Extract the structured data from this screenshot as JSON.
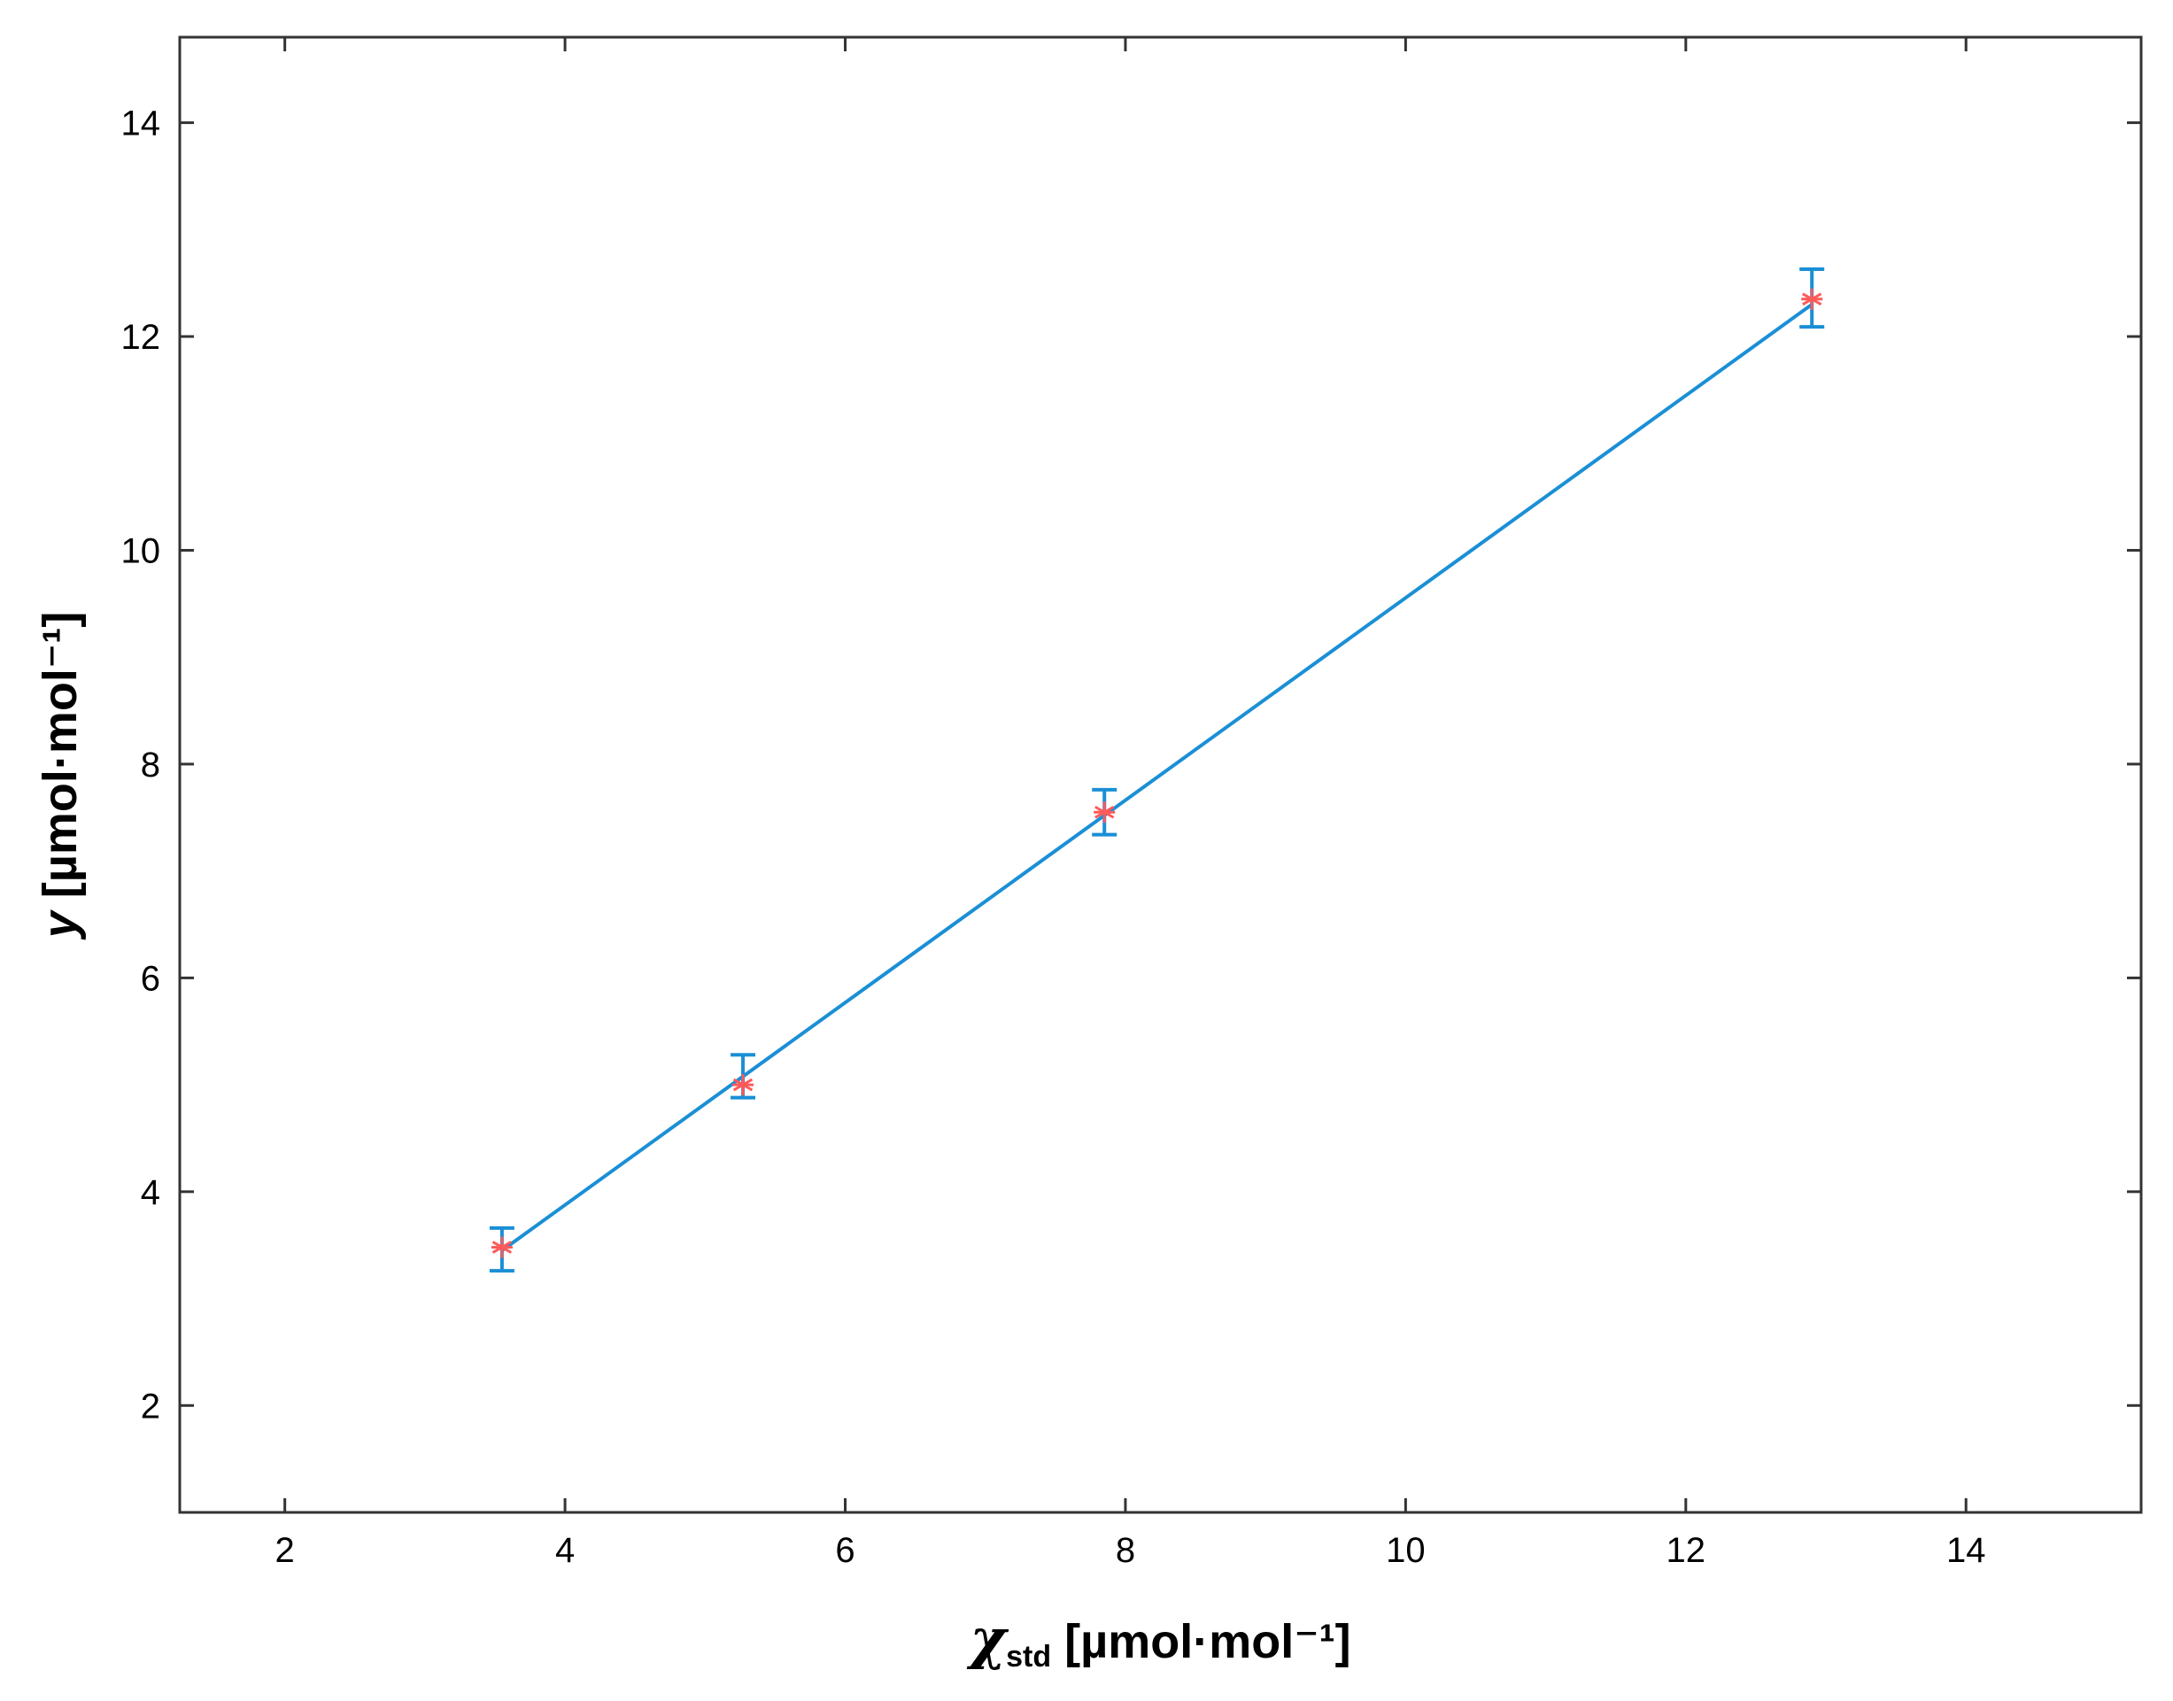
{
  "chart_data": {
    "type": "scatter",
    "xlabel": {
      "symbol": "χ",
      "subscript": "std",
      "unit": " [µmol·mol⁻¹]"
    },
    "ylabel": {
      "symbol": "y",
      "unit": " [µmol·mol⁻¹]"
    },
    "xlim": [
      1.25,
      15.25
    ],
    "ylim": [
      1.0,
      14.8
    ],
    "xticks": [
      2,
      4,
      6,
      8,
      10,
      12,
      14
    ],
    "yticks": [
      2,
      4,
      6,
      8,
      10,
      12,
      14
    ],
    "grid": false,
    "series": [
      {
        "kind": "points-with-errorbars",
        "color": "#ff5a5a",
        "errorbar_color": "#1a8fd6",
        "x": [
          3.55,
          5.27,
          7.85,
          12.9
        ],
        "y": [
          3.48,
          5.0,
          7.55,
          12.35
        ],
        "yerr_low": [
          0.22,
          0.12,
          0.21,
          0.26
        ],
        "yerr_high": [
          0.18,
          0.28,
          0.21,
          0.28
        ]
      },
      {
        "kind": "fit-line",
        "color": "#1a8fd6",
        "x": [
          3.55,
          12.9
        ],
        "y": [
          3.45,
          12.3
        ]
      }
    ]
  }
}
